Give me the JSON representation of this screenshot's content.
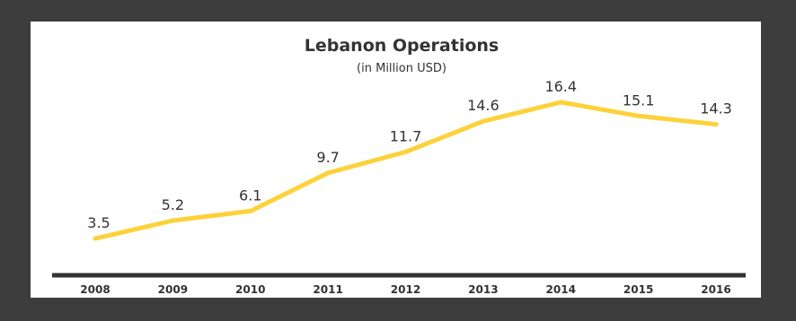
{
  "chart_data": {
    "type": "line",
    "title": "Lebanon Operations",
    "subtitle": "(in Million USD)",
    "x": [
      "2008",
      "2009",
      "2010",
      "2011",
      "2012",
      "2013",
      "2014",
      "2015",
      "2016"
    ],
    "series": [
      {
        "values": [
          3.5,
          5.2,
          6.1,
          9.7,
          11.7,
          14.6,
          16.4,
          15.1,
          14.3
        ],
        "color": "#fcd23a"
      }
    ],
    "data_labels": [
      "3.5",
      "5.2",
      "6.1",
      "9.7",
      "11.7",
      "14.6",
      "16.4",
      "15.1",
      "14.3"
    ],
    "grid": false,
    "axis_color": "#333333"
  }
}
